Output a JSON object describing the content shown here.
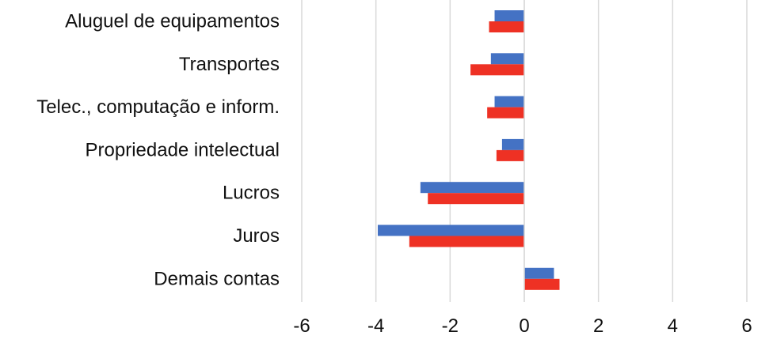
{
  "chart_data": {
    "type": "bar",
    "orientation": "horizontal",
    "categories": [
      "Aluguel de equipamentos",
      "Transportes",
      "Telec., computação e inform.",
      "Propriedade intelectual",
      "Lucros",
      "Juros",
      "Demais contas"
    ],
    "series": [
      {
        "color": "#4472C4",
        "values": [
          -0.8,
          -0.9,
          -0.8,
          -0.6,
          -2.8,
          -3.95,
          0.8
        ]
      },
      {
        "color": "#EE3124",
        "values": [
          -0.95,
          -1.45,
          -1.0,
          -0.75,
          -2.6,
          -3.1,
          0.95
        ]
      }
    ],
    "xlim": [
      -6,
      6
    ],
    "xticks": [
      "-6",
      "-4",
      "-2",
      "0",
      "2",
      "4",
      "6"
    ],
    "xtick_values": [
      -6,
      -4,
      -2,
      0,
      2,
      4,
      6
    ],
    "grid": "vertical",
    "legend": "none",
    "title": "",
    "xlabel": "",
    "ylabel": ""
  }
}
